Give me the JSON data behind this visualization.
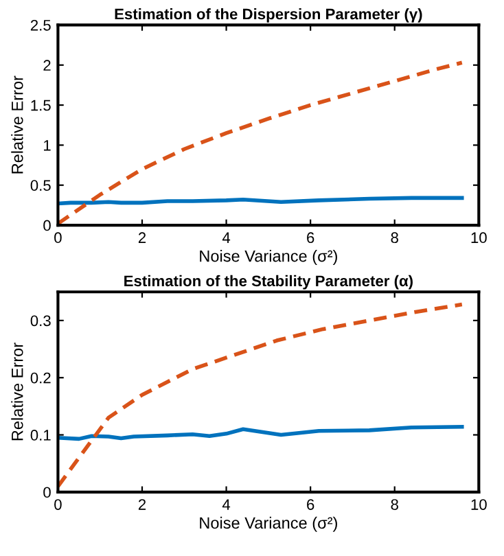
{
  "chart_data": [
    {
      "type": "line",
      "title": "Estimation of the Dispersion Parameter (γ)",
      "xlabel": "Noise Variance (σ²)",
      "ylabel": "Relative Error",
      "xlim": [
        0,
        10
      ],
      "xticks": [
        0,
        2,
        4,
        6,
        8,
        10
      ],
      "ylim": [
        0,
        2.5
      ],
      "yticks": [
        0,
        0.5,
        1,
        1.5,
        2,
        2.5
      ],
      "grid": false,
      "legend": false,
      "series": [
        {
          "color": "#0072bd",
          "line_style": "solid",
          "x": [
            0,
            0.3,
            0.8,
            1.2,
            1.5,
            2,
            2.6,
            3.2,
            4,
            4.4,
            5.3,
            6.2,
            7.4,
            8.4,
            9.6
          ],
          "values": [
            0.27,
            0.28,
            0.28,
            0.29,
            0.28,
            0.28,
            0.3,
            0.3,
            0.31,
            0.32,
            0.29,
            0.31,
            0.33,
            0.34,
            0.34
          ]
        },
        {
          "color": "#d95319",
          "line_style": "dashed",
          "x": [
            0,
            1,
            2,
            3,
            4,
            5,
            6,
            7,
            8,
            9,
            9.6
          ],
          "values": [
            0.02,
            0.38,
            0.7,
            0.95,
            1.15,
            1.33,
            1.5,
            1.65,
            1.8,
            1.95,
            2.03
          ]
        }
      ]
    },
    {
      "type": "line",
      "title": "Estimation of the Stability Parameter (α)",
      "xlabel": "Noise Variance (σ²)",
      "ylabel": "Relative Error",
      "xlim": [
        0,
        10
      ],
      "xticks": [
        0,
        2,
        4,
        6,
        8,
        10
      ],
      "ylim": [
        0,
        0.35
      ],
      "yticks": [
        0,
        0.1,
        0.2,
        0.3
      ],
      "grid": false,
      "legend": false,
      "series": [
        {
          "color": "#0072bd",
          "line_style": "solid",
          "x": [
            0,
            0.5,
            0.8,
            1.2,
            1.5,
            1.8,
            2.6,
            3.2,
            3.6,
            4,
            4.4,
            5.3,
            6.2,
            7.4,
            8.4,
            9.6
          ],
          "values": [
            0.095,
            0.093,
            0.098,
            0.097,
            0.094,
            0.097,
            0.099,
            0.101,
            0.098,
            0.102,
            0.11,
            0.1,
            0.107,
            0.108,
            0.113,
            0.114
          ]
        },
        {
          "color": "#d95319",
          "line_style": "dashed",
          "x": [
            0,
            0.4,
            0.8,
            1.2,
            2,
            3.2,
            4.2,
            5.2,
            6.3,
            7.4,
            8.5,
            9.6
          ],
          "values": [
            0.01,
            0.05,
            0.09,
            0.13,
            0.17,
            0.215,
            0.24,
            0.265,
            0.285,
            0.3,
            0.315,
            0.328
          ]
        }
      ]
    }
  ]
}
